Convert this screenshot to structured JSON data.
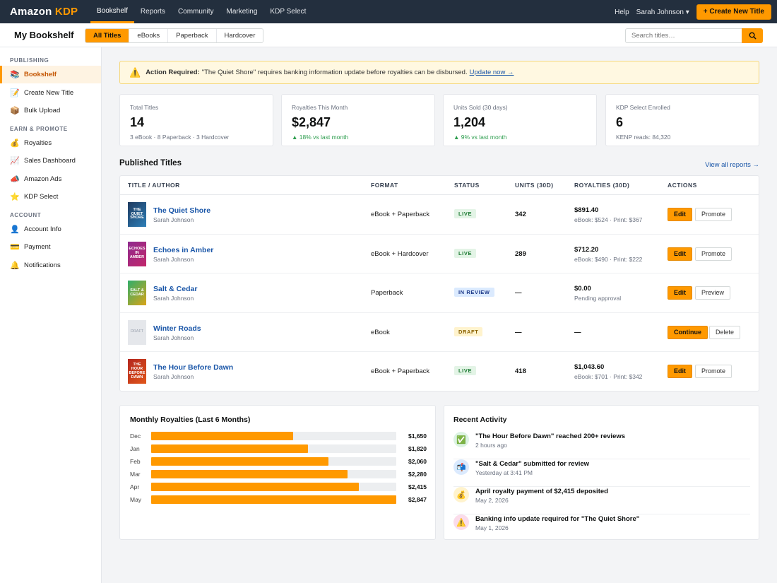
{
  "brand": {
    "name": "Amazon",
    "accent": "KDP"
  },
  "nav": {
    "items": [
      "Bookshelf",
      "Reports",
      "Community",
      "Marketing",
      "KDP Select"
    ],
    "active": "Bookshelf"
  },
  "header_right": {
    "help": "Help",
    "user": "Sarah Johnson ▾",
    "create_button": "+ Create New Title"
  },
  "page": {
    "title": "My Bookshelf"
  },
  "filters": {
    "tabs": [
      "All Titles",
      "eBooks",
      "Paperback",
      "Hardcover"
    ],
    "active": "All Titles"
  },
  "search": {
    "placeholder": "Search titles…",
    "value": "",
    "icon": "search-icon"
  },
  "sidebar": {
    "sections": [
      {
        "heading": "PUBLISHING",
        "items": [
          {
            "label": "Bookshelf",
            "icon": "📚",
            "active": true
          },
          {
            "label": "Create New Title",
            "icon": "📝"
          },
          {
            "label": "Bulk Upload",
            "icon": "📦"
          }
        ]
      },
      {
        "heading": "EARN & PROMOTE",
        "items": [
          {
            "label": "Royalties",
            "icon": "💰"
          },
          {
            "label": "Sales Dashboard",
            "icon": "📈"
          },
          {
            "label": "Amazon Ads",
            "icon": "📣"
          },
          {
            "label": "KDP Select",
            "icon": "⭐"
          }
        ]
      },
      {
        "heading": "ACCOUNT",
        "items": [
          {
            "label": "Account Info",
            "icon": "👤"
          },
          {
            "label": "Payment",
            "icon": "💳"
          },
          {
            "label": "Notifications",
            "icon": "🔔"
          }
        ]
      }
    ]
  },
  "alert": {
    "icon": "⚠️",
    "label": "Action Required:",
    "message": "\"The Quiet Shore\" requires banking information update before royalties can be disbursed.",
    "link": "Update now →"
  },
  "stats": [
    {
      "label": "Total Titles",
      "value": "14",
      "sub": "3 eBook · 8 Paperback · 3 Hardcover",
      "trend": false
    },
    {
      "label": "Royalties This Month",
      "value": "$2,847",
      "sub": "▲ 18% vs last month",
      "trend": true
    },
    {
      "label": "Units Sold (30 days)",
      "value": "1,204",
      "sub": "▲ 9% vs last month",
      "trend": true
    },
    {
      "label": "KDP Select Enrolled",
      "value": "6",
      "sub": "KENP reads: 84,320",
      "trend": false
    }
  ],
  "published": {
    "title": "Published Titles",
    "view_all": "View all reports →",
    "columns": [
      "TITLE / AUTHOR",
      "FORMAT",
      "STATUS",
      "UNITS (30D)",
      "ROYALTIES (30D)",
      "ACTIONS"
    ],
    "rows": [
      {
        "title": "The Quiet Shore",
        "author": "Sarah Johnson",
        "cover_text": "THE QUIET SHORE",
        "cover_colors": [
          "#1f3a5f",
          "#2d7fb8"
        ],
        "format": "eBook + Paperback",
        "status": "LIVE",
        "units": "342",
        "royalty": "$891.40",
        "royalty_sub": "eBook: $524 · Print: $367",
        "primary_action": "Edit",
        "secondary_action": "Promote"
      },
      {
        "title": "Echoes in Amber",
        "author": "Sarah Johnson",
        "cover_text": "ECHOES IN AMBER",
        "cover_colors": [
          "#8e2a8e",
          "#c2286b"
        ],
        "format": "eBook + Hardcover",
        "status": "LIVE",
        "units": "289",
        "royalty": "$712.20",
        "royalty_sub": "eBook: $490 · Print: $222",
        "primary_action": "Edit",
        "secondary_action": "Promote"
      },
      {
        "title": "Salt & Cedar",
        "author": "Sarah Johnson",
        "cover_text": "SALT & CEDAR",
        "cover_colors": [
          "#2fae6a",
          "#d9a418"
        ],
        "format": "Paperback",
        "status": "IN REVIEW",
        "units": "—",
        "royalty": "$0.00",
        "royalty_sub": "Pending approval",
        "primary_action": "Edit",
        "secondary_action": "Preview"
      },
      {
        "title": "Winter Roads",
        "author": "Sarah Johnson",
        "cover_text": "DRAFT",
        "cover_colors": [
          "#e5e7eb",
          "#e5e7eb"
        ],
        "format": "eBook",
        "status": "DRAFT",
        "units": "—",
        "royalty": "—",
        "royalty_sub": "",
        "primary_action": "Continue",
        "secondary_action": "Delete"
      },
      {
        "title": "The Hour Before Dawn",
        "author": "Sarah Johnson",
        "cover_text": "THE HOUR BEFORE DAWN",
        "cover_colors": [
          "#b3261e",
          "#e0561b"
        ],
        "format": "eBook + Paperback",
        "status": "LIVE",
        "units": "418",
        "royalty": "$1,043.60",
        "royalty_sub": "eBook: $701 · Print: $342",
        "primary_action": "Edit",
        "secondary_action": "Promote"
      }
    ]
  },
  "chart_data": {
    "type": "bar",
    "orientation": "horizontal",
    "title": "Monthly Royalties (Last 6 Months)",
    "categories": [
      "Dec",
      "Jan",
      "Feb",
      "Mar",
      "Apr",
      "May"
    ],
    "values": [
      1650,
      1820,
      2060,
      2280,
      2415,
      2847
    ],
    "value_labels": [
      "$1,650",
      "$1,820",
      "$2,060",
      "$2,280",
      "$2,415",
      "$2,847"
    ],
    "xlim": [
      0,
      2847
    ],
    "color": "#ff9900"
  },
  "activity": {
    "title": "Recent Activity",
    "items": [
      {
        "icon": "✅",
        "bg": "#dcf3e3",
        "title": "\"The Hour Before Dawn\" reached 200+ reviews",
        "time": "2 hours ago"
      },
      {
        "icon": "📬",
        "bg": "#dbeafe",
        "title": "\"Salt & Cedar\" submitted for review",
        "time": "Yesterday at 3:41 PM"
      },
      {
        "icon": "💰",
        "bg": "#fff3cd",
        "title": "April royalty payment of $2,415 deposited",
        "time": "May 2, 2026"
      },
      {
        "icon": "⚠️",
        "bg": "#fbdcea",
        "title": "Banking info update required for \"The Quiet Shore\"",
        "time": "May 1, 2026"
      }
    ]
  }
}
